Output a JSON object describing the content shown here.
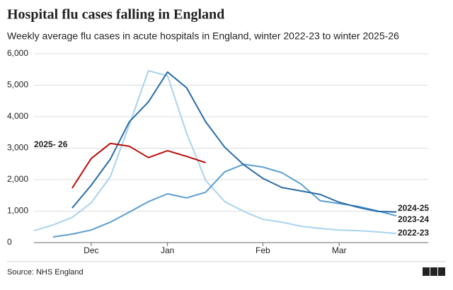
{
  "chart_data": {
    "type": "line",
    "title": "Hospital flu cases falling in England",
    "subtitle": "Weekly average flu cases in acute hospitals in England, winter 2022-23 to winter 2025-26",
    "source": "Source: NHS England",
    "logo": [
      "B",
      "B",
      "C"
    ],
    "categories": [
      null,
      null,
      null,
      "Dec",
      null,
      null,
      null,
      "Jan",
      null,
      null,
      null,
      null,
      "Feb",
      null,
      null,
      null,
      "Mar",
      null,
      null,
      null
    ],
    "ylim": [
      0,
      6000
    ],
    "yticks": [
      0,
      {
        "value": 1000,
        "label": "1,000"
      },
      {
        "value": 2000,
        "label": "2,000"
      },
      {
        "value": 3000,
        "label": "3,000"
      },
      {
        "value": 4000,
        "label": "4,000"
      },
      {
        "value": 5000,
        "label": "5,000"
      },
      {
        "value": 6000,
        "label": "6,000"
      }
    ],
    "grid": true,
    "series": [
      {
        "name": "2022-23",
        "color": "#a9d3ee",
        "values": [
          380,
          560,
          800,
          1260,
          2090,
          3750,
          5460,
          5300,
          3480,
          1980,
          1300,
          990,
          740,
          650,
          520,
          450,
          400,
          380,
          340,
          290
        ]
      },
      {
        "name": "2023-24",
        "color": "#5b9fd0",
        "values": [
          null,
          180,
          270,
          400,
          650,
          970,
          1300,
          1550,
          1420,
          1600,
          2250,
          2490,
          2400,
          2220,
          1860,
          1330,
          1240,
          1150,
          1010,
          850
        ]
      },
      {
        "name": "2024-25",
        "color": "#2a6ca6",
        "values": [
          null,
          null,
          1100,
          1820,
          2650,
          3840,
          4470,
          5420,
          4920,
          3840,
          3030,
          2470,
          2040,
          1750,
          1640,
          1530,
          1280,
          1120,
          990,
          970
        ]
      },
      {
        "name": "2025- 26",
        "color": "#b80f0a",
        "values": [
          null,
          null,
          1730,
          2670,
          3150,
          3060,
          2700,
          2920,
          2740,
          2540,
          null,
          null,
          null,
          null,
          null,
          null,
          null,
          null,
          null,
          null
        ]
      }
    ]
  }
}
